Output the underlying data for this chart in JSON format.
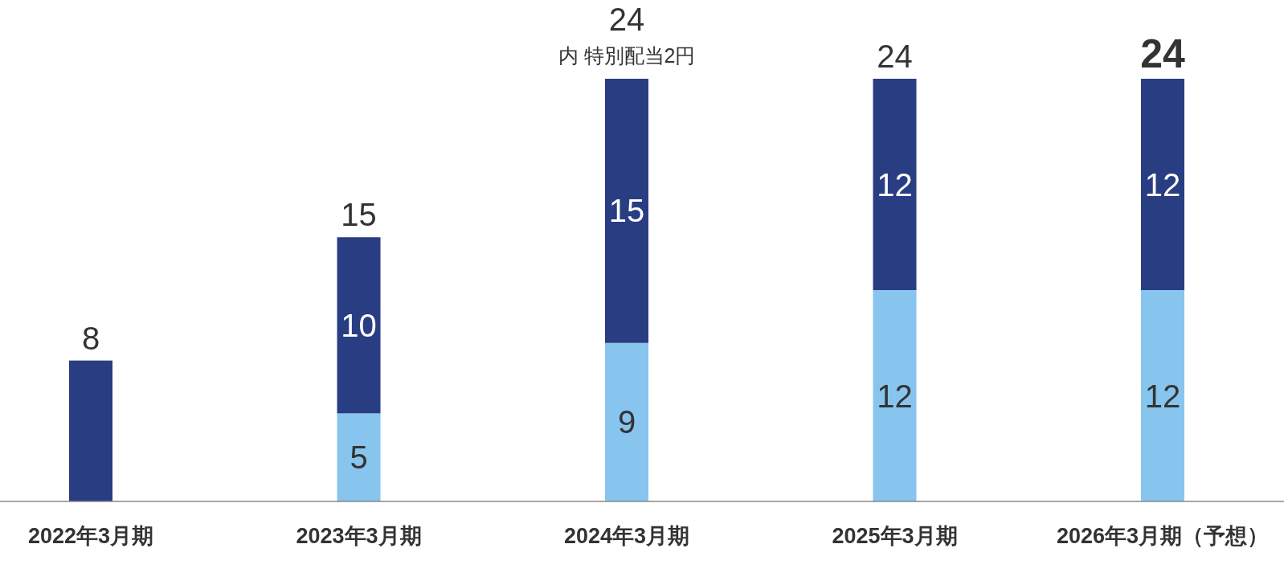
{
  "chart_data": {
    "type": "bar",
    "stacked": true,
    "categories": [
      "2022年3月期",
      "2023年3月期",
      "2024年3月期",
      "2025年3月期",
      "2026年3月期（予想）"
    ],
    "series": [
      {
        "color": "#87c5ee",
        "values": [
          null,
          5,
          9,
          12,
          12
        ],
        "value_labels": [
          null,
          "5",
          "9",
          "12",
          "12"
        ]
      },
      {
        "color": "#293d82",
        "values": [
          8,
          10,
          15,
          12,
          12
        ],
        "value_labels": [
          null,
          "10",
          "15",
          "12",
          "12"
        ]
      }
    ],
    "totals": [
      "8",
      "15",
      "24",
      "24",
      "24"
    ],
    "annotations": [
      {
        "text": "内 特別配当2円",
        "x": "2024年3月期",
        "y": 24
      }
    ]
  }
}
